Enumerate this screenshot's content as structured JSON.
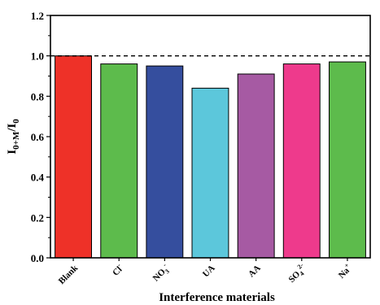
{
  "chart_data": {
    "type": "bar",
    "categories": [
      "Blank",
      "Cl",
      "NO3",
      "UA",
      "AA",
      "SO4",
      "Na"
    ],
    "category_superscripts": [
      "",
      "-",
      "-",
      "",
      "",
      "2-",
      "+"
    ],
    "category_subscripts": [
      "",
      "",
      "3",
      "",
      "",
      "4",
      ""
    ],
    "category_bases": [
      "Blank",
      "Cl",
      "NO",
      "UA",
      "AA",
      "SO",
      "Na"
    ],
    "values": [
      1.0,
      0.96,
      0.95,
      0.84,
      0.91,
      0.96,
      0.97
    ],
    "colors": [
      "#EE3128",
      "#5DBB4C",
      "#354E9E",
      "#5CC7DB",
      "#A65AA3",
      "#EE3A8C",
      "#5DBB4C"
    ],
    "xlabel": "Interference materials",
    "ylabel": {
      "base": "I",
      "sub1": "0+M",
      "mid": "/I",
      "sub2": "0"
    },
    "ylim": [
      0.0,
      1.2
    ],
    "yticks": [
      "0.0",
      "0.2",
      "0.4",
      "0.6",
      "0.8",
      "1.0",
      "1.2"
    ],
    "reference_line": {
      "y": 1.0,
      "style": "dashed"
    },
    "grid": false
  }
}
